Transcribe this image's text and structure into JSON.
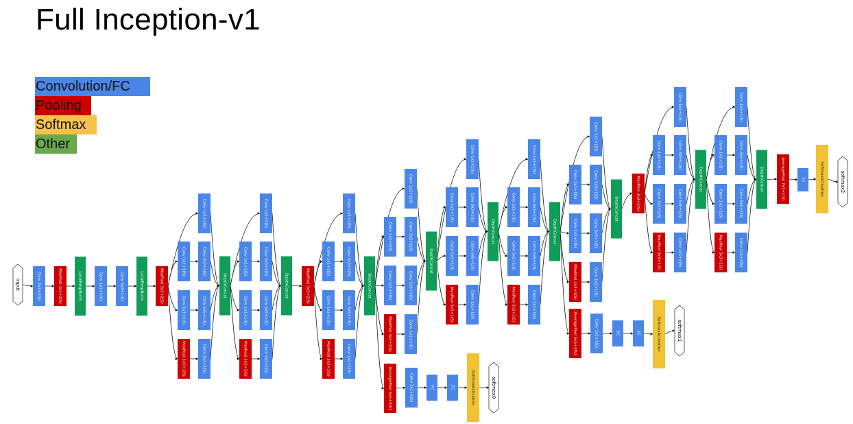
{
  "title": "Full Inception-v1",
  "legend": [
    {
      "label": "Convolution/FC",
      "color": "#4a86e8"
    },
    {
      "label": "Pooling",
      "color": "#cc0000"
    },
    {
      "label": "Softmax",
      "color": "#f1c232"
    },
    {
      "label": "Other",
      "color": "#6aa84f"
    }
  ],
  "colors": {
    "conv": "#4a86e8",
    "pool": "#cc0000",
    "softmax": "#f1c232",
    "other": "#0f9d58"
  },
  "node_labels": {
    "input": "input",
    "conv_7x7": "Conv 7x7+2(S)",
    "maxpool_3x3_2s": "MaxPool 3x3+2(S)",
    "lrn": "LocalRespNorm",
    "conv_1x1_v": "Conv 1x1+1(V)",
    "conv_3x3_s": "Conv 3x3+1(S)",
    "conv_1x1_s": "Conv 1x1+1(S)",
    "conv_5x5_s": "Conv 5x5+1(S)",
    "maxpool_3x3_1s": "MaxPool 3x3+1(S)",
    "depthconcat": "DepthConcat",
    "avgpool_5x5": "AveragePool 5x5+3(V)",
    "avgpool_7x7": "AveragePool 7x7+1(V)",
    "fc": "FC",
    "softmax_act": "SoftmaxActivation",
    "softmax0": "softmax0",
    "softmax1": "softmax1",
    "softmax2": "softmax2"
  }
}
